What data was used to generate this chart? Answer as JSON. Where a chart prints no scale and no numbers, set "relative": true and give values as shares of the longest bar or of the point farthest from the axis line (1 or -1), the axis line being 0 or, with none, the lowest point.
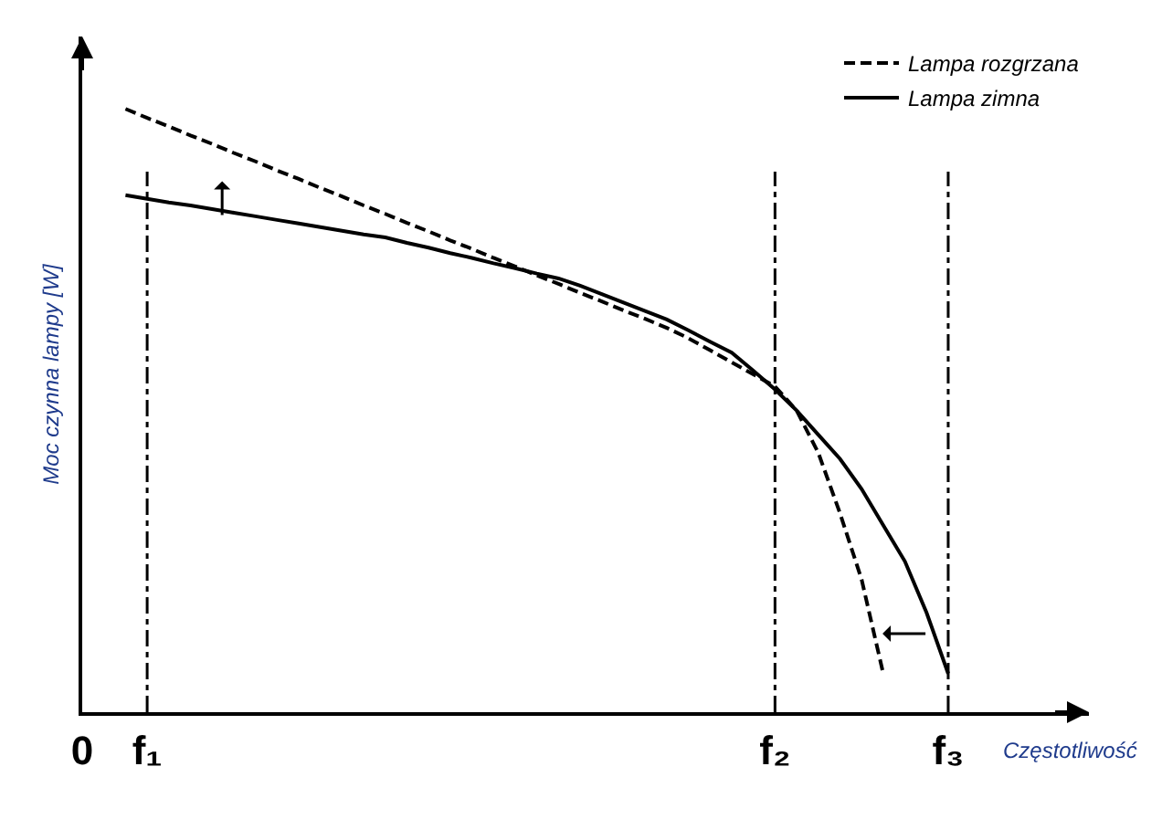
{
  "chart_data": {
    "type": "line",
    "relative": true,
    "ylabel": "Moc czynna lampy [W]",
    "xlabel": "Częstotliwość",
    "legend": "top right",
    "grid": false,
    "tick_labels": "x",
    "marker": "none",
    "categories": [
      "0",
      null,
      null,
      "f₁",
      null,
      null,
      null,
      null,
      null,
      null,
      null,
      null,
      null,
      null,
      null,
      null,
      null,
      null,
      null,
      null,
      null,
      null,
      null,
      null,
      null,
      null,
      null,
      null,
      null,
      null,
      null,
      null,
      "f₂",
      null,
      null,
      null,
      null,
      null,
      null,
      null,
      "f₃",
      null,
      null,
      null,
      null,
      null,
      null
    ],
    "series": [
      {
        "name": "Lampa rozgrzana",
        "color": "#000000",
        "line_style": "dashed",
        "values": [
          null,
          null,
          1.0,
          0.985,
          0.971,
          0.956,
          0.942,
          0.927,
          0.913,
          0.898,
          0.884,
          0.869,
          0.855,
          0.84,
          0.826,
          0.811,
          0.797,
          0.782,
          0.768,
          0.753,
          0.739,
          0.724,
          0.71,
          0.695,
          0.681,
          0.666,
          0.652,
          0.637,
          0.62,
          0.6,
          0.58,
          0.56,
          0.54,
          0.5,
          0.43,
          0.33,
          0.22,
          0.064,
          null,
          null,
          null,
          null,
          null,
          null,
          null,
          null,
          null
        ]
      },
      {
        "name": "Lampa zimna",
        "color": "#000000",
        "line_style": "solid",
        "values": [
          null,
          null,
          0.857,
          0.851,
          0.845,
          0.84,
          0.834,
          0.828,
          0.822,
          0.816,
          0.81,
          0.804,
          0.798,
          0.792,
          0.787,
          0.778,
          0.77,
          0.761,
          0.753,
          0.744,
          0.736,
          0.727,
          0.719,
          0.707,
          0.693,
          0.679,
          0.665,
          0.651,
          0.633,
          0.614,
          0.596,
          0.566,
          0.535,
          0.5,
          0.46,
          0.42,
          0.37,
          0.31,
          0.25,
          0.165,
          0.064,
          null,
          null,
          null,
          null,
          null,
          null
        ]
      }
    ],
    "ref_lines": [
      {
        "axis": "x",
        "value": "f₁"
      },
      {
        "axis": "x",
        "value": "f₂"
      },
      {
        "axis": "x",
        "value": "f₃"
      }
    ]
  }
}
